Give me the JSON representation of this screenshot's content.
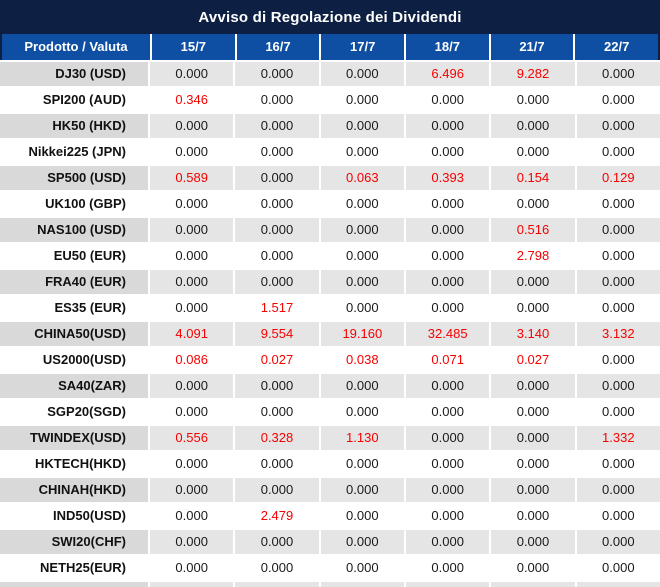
{
  "title": "Avviso di Regolazione dei Dividendi",
  "table": {
    "product_header": "Prodotto / Valuta",
    "date_headers": [
      "15/7",
      "16/7",
      "17/7",
      "18/7",
      "21/7",
      "22/7"
    ],
    "rows": [
      {
        "product": "DJ30 (USD)",
        "values": [
          "0.000",
          "0.000",
          "0.000",
          "6.496",
          "9.282",
          "0.000"
        ],
        "red": [
          false,
          false,
          false,
          true,
          true,
          false
        ]
      },
      {
        "product": "SPI200 (AUD)",
        "values": [
          "0.346",
          "0.000",
          "0.000",
          "0.000",
          "0.000",
          "0.000"
        ],
        "red": [
          true,
          false,
          false,
          false,
          false,
          false
        ]
      },
      {
        "product": "HK50 (HKD)",
        "values": [
          "0.000",
          "0.000",
          "0.000",
          "0.000",
          "0.000",
          "0.000"
        ],
        "red": [
          false,
          false,
          false,
          false,
          false,
          false
        ]
      },
      {
        "product": "Nikkei225 (JPN)",
        "values": [
          "0.000",
          "0.000",
          "0.000",
          "0.000",
          "0.000",
          "0.000"
        ],
        "red": [
          false,
          false,
          false,
          false,
          false,
          false
        ]
      },
      {
        "product": "SP500 (USD)",
        "values": [
          "0.589",
          "0.000",
          "0.063",
          "0.393",
          "0.154",
          "0.129"
        ],
        "red": [
          true,
          false,
          true,
          true,
          true,
          true
        ]
      },
      {
        "product": "UK100 (GBP)",
        "values": [
          "0.000",
          "0.000",
          "0.000",
          "0.000",
          "0.000",
          "0.000"
        ],
        "red": [
          false,
          false,
          false,
          false,
          false,
          false
        ]
      },
      {
        "product": "NAS100 (USD)",
        "values": [
          "0.000",
          "0.000",
          "0.000",
          "0.000",
          "0.516",
          "0.000"
        ],
        "red": [
          false,
          false,
          false,
          false,
          true,
          false
        ]
      },
      {
        "product": "EU50 (EUR)",
        "values": [
          "0.000",
          "0.000",
          "0.000",
          "0.000",
          "2.798",
          "0.000"
        ],
        "red": [
          false,
          false,
          false,
          false,
          true,
          false
        ]
      },
      {
        "product": "FRA40 (EUR)",
        "values": [
          "0.000",
          "0.000",
          "0.000",
          "0.000",
          "0.000",
          "0.000"
        ],
        "red": [
          false,
          false,
          false,
          false,
          false,
          false
        ]
      },
      {
        "product": "ES35 (EUR)",
        "values": [
          "0.000",
          "1.517",
          "0.000",
          "0.000",
          "0.000",
          "0.000"
        ],
        "red": [
          false,
          true,
          false,
          false,
          false,
          false
        ]
      },
      {
        "product": "CHINA50(USD)",
        "values": [
          "4.091",
          "9.554",
          "19.160",
          "32.485",
          "3.140",
          "3.132"
        ],
        "red": [
          true,
          true,
          true,
          true,
          true,
          true
        ]
      },
      {
        "product": "US2000(USD)",
        "values": [
          "0.086",
          "0.027",
          "0.038",
          "0.071",
          "0.027",
          "0.000"
        ],
        "red": [
          true,
          true,
          true,
          true,
          true,
          false
        ]
      },
      {
        "product": "SA40(ZAR)",
        "values": [
          "0.000",
          "0.000",
          "0.000",
          "0.000",
          "0.000",
          "0.000"
        ],
        "red": [
          false,
          false,
          false,
          false,
          false,
          false
        ]
      },
      {
        "product": "SGP20(SGD)",
        "values": [
          "0.000",
          "0.000",
          "0.000",
          "0.000",
          "0.000",
          "0.000"
        ],
        "red": [
          false,
          false,
          false,
          false,
          false,
          false
        ]
      },
      {
        "product": "TWINDEX(USD)",
        "values": [
          "0.556",
          "0.328",
          "1.130",
          "0.000",
          "0.000",
          "1.332"
        ],
        "red": [
          true,
          true,
          true,
          false,
          false,
          true
        ]
      },
      {
        "product": "HKTECH(HKD)",
        "values": [
          "0.000",
          "0.000",
          "0.000",
          "0.000",
          "0.000",
          "0.000"
        ],
        "red": [
          false,
          false,
          false,
          false,
          false,
          false
        ]
      },
      {
        "product": "CHINAH(HKD)",
        "values": [
          "0.000",
          "0.000",
          "0.000",
          "0.000",
          "0.000",
          "0.000"
        ],
        "red": [
          false,
          false,
          false,
          false,
          false,
          false
        ]
      },
      {
        "product": "IND50(USD)",
        "values": [
          "0.000",
          "2.479",
          "0.000",
          "0.000",
          "0.000",
          "0.000"
        ],
        "red": [
          false,
          true,
          false,
          false,
          false,
          false
        ]
      },
      {
        "product": "SWI20(CHF)",
        "values": [
          "0.000",
          "0.000",
          "0.000",
          "0.000",
          "0.000",
          "0.000"
        ],
        "red": [
          false,
          false,
          false,
          false,
          false,
          false
        ]
      },
      {
        "product": "NETH25(EUR)",
        "values": [
          "0.000",
          "0.000",
          "0.000",
          "0.000",
          "0.000",
          "0.000"
        ],
        "red": [
          false,
          false,
          false,
          false,
          false,
          false
        ]
      }
    ]
  },
  "colors": {
    "title_bar_bg": "#0D1F42",
    "header_bg": "#0E4FA3",
    "header_text": "#FFFFFF",
    "row_alt_product_bg": "#D9D9D9",
    "row_alt_value_bg": "#E5E5E5",
    "row_bg": "#FFFFFF",
    "value_text": "#1A1A1A",
    "highlight_red": "#F70000"
  }
}
